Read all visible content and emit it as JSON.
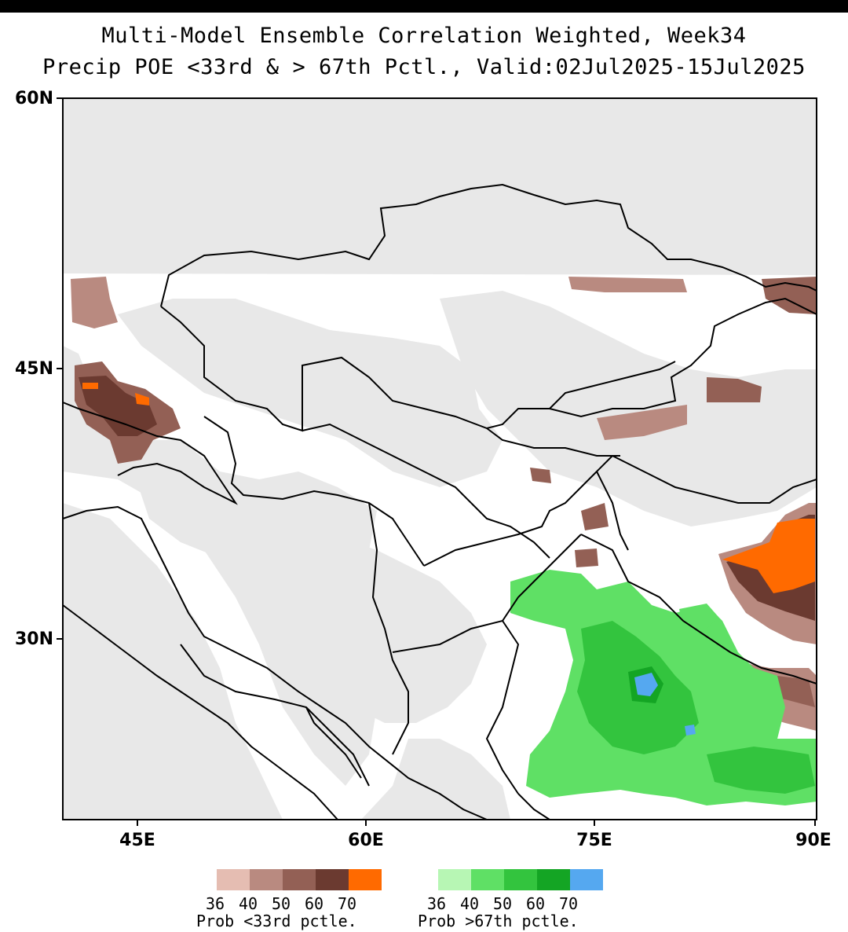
{
  "title": {
    "line1": "Multi-Model Ensemble Correlation Weighted, Week34",
    "line2": "Precip POE <33rd & > 67th Pctl., Valid:02Jul2025-15Jul2025"
  },
  "axes": {
    "y_labels": [
      "60N",
      "45N",
      "30N"
    ],
    "x_labels": [
      "45E",
      "60E",
      "75E",
      "90E"
    ]
  },
  "legend_below": {
    "values": [
      "36",
      "40",
      "50",
      "60",
      "70"
    ],
    "caption": "Prob <33rd pctle.",
    "colors": [
      "#e5bdb2",
      "#b98a80",
      "#936055",
      "#6b3a30",
      "#ff6a00"
    ]
  },
  "legend_above": {
    "values": [
      "36",
      "40",
      "50",
      "60",
      "70"
    ],
    "caption": "Prob >67th pctle.",
    "colors": [
      "#b7f6b4",
      "#5fe065",
      "#33c43e",
      "#14a524",
      "#55a8f0"
    ]
  },
  "colors": {
    "no_data": "#e8e8e8",
    "land": "#ffffff",
    "border": "#000000"
  }
}
